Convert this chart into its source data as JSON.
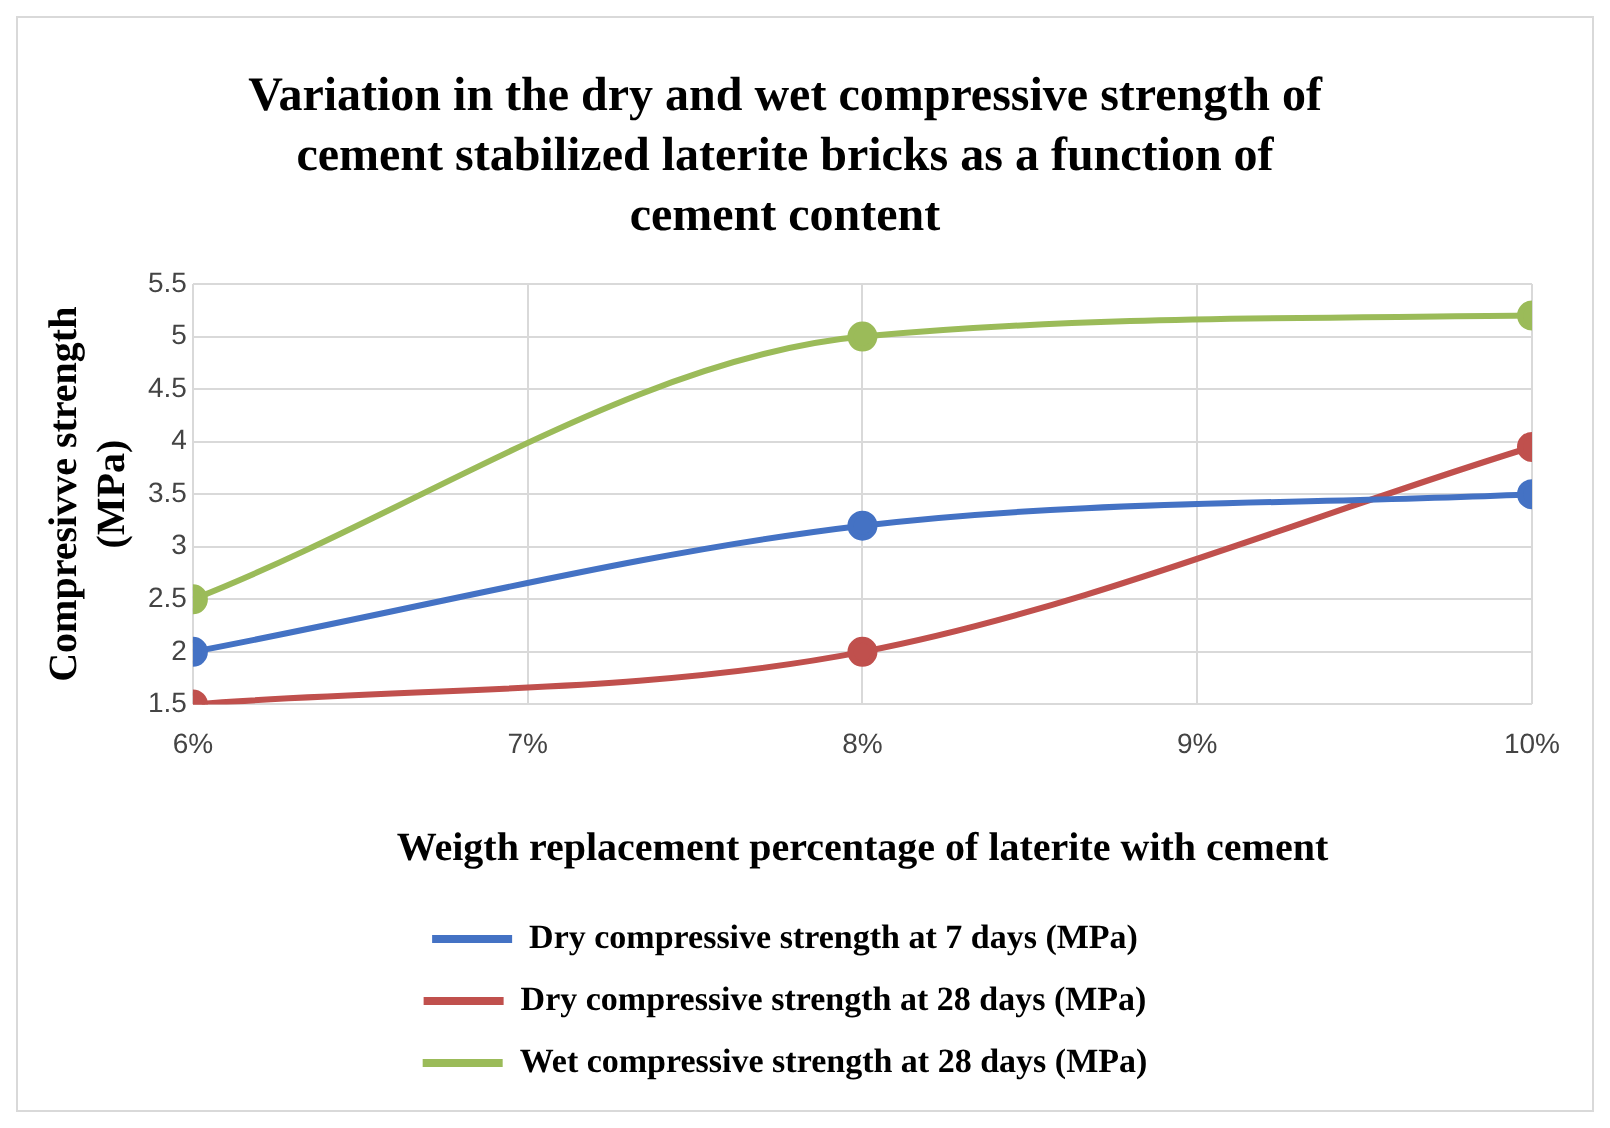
{
  "chart_data": {
    "type": "line",
    "title": "Variation in the dry and wet compressive strength of cement stabilized laterite bricks as a function of cement content",
    "xlabel": "Weigth replacement percentage of laterite with cement",
    "ylabel": "Compresivve strength (MPa)",
    "x": [
      6,
      8,
      10
    ],
    "series": [
      {
        "name": "Dry compressive strength at 7 days (MPa)",
        "color": "#4472c4",
        "values": [
          2,
          3.2,
          3.5
        ]
      },
      {
        "name": "Dry compressive strength at 28 days (MPa)",
        "color": "#c0504d",
        "values": [
          1.5,
          2,
          3.95
        ]
      },
      {
        "name": "Wet compressive strength at 28 days (MPa)",
        "color": "#9bbb59",
        "values": [
          2.5,
          5,
          5.2
        ]
      }
    ],
    "xlim": [
      6,
      10
    ],
    "xticks": [
      {
        "value": 6,
        "label": "6%"
      },
      {
        "value": 7,
        "label": "7%"
      },
      {
        "value": 8,
        "label": "8%"
      },
      {
        "value": 9,
        "label": "9%"
      },
      {
        "value": 10,
        "label": "10%"
      }
    ],
    "ylim": [
      1.5,
      5.5
    ],
    "yticks": [
      1.5,
      2,
      2.5,
      3,
      3.5,
      4,
      4.5,
      5,
      5.5
    ],
    "grid": true,
    "legend": "bottom",
    "marker": "circle",
    "line_style": "solid"
  }
}
